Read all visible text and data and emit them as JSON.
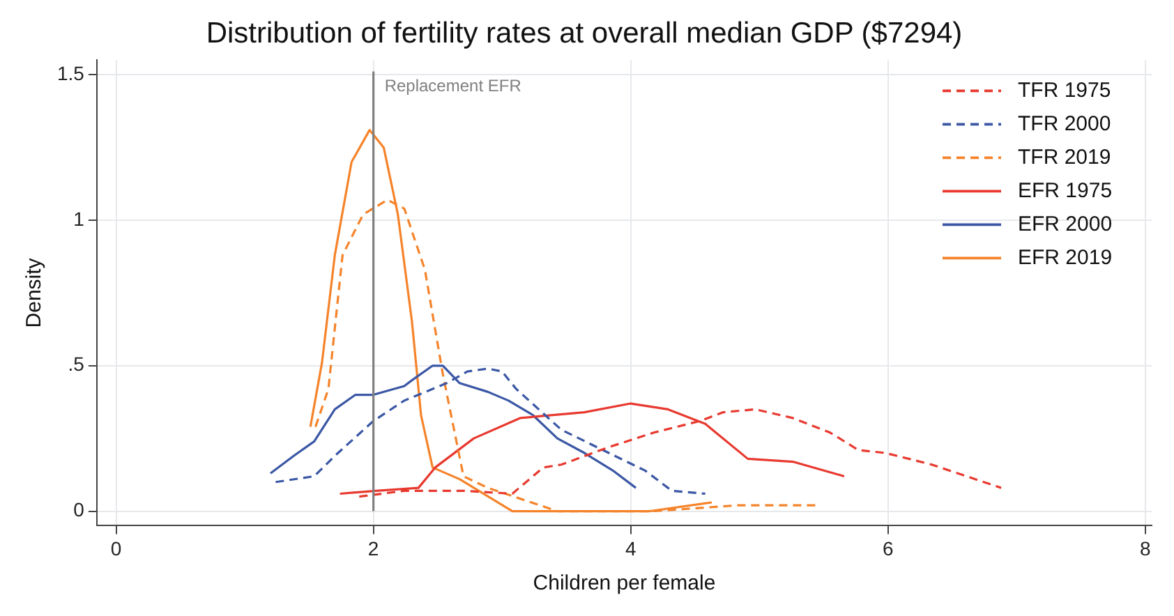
{
  "chart_data": {
    "type": "line",
    "title": "Distribution of fertility rates at overall median GDP ($7294)",
    "xlabel": "Children per female",
    "ylabel": "Density",
    "xlim": [
      -0.15,
      8.05
    ],
    "ylim": [
      -0.05,
      1.55
    ],
    "xticks": [
      0,
      2,
      4,
      6,
      8
    ],
    "yticks": [
      0,
      {
        "value": 0.5,
        "label": ".5"
      },
      1,
      1.5
    ],
    "grid": true,
    "legend": "top right",
    "marker": "none",
    "ref_lines": [
      {
        "axis": "x",
        "value": 2,
        "label": "Replacement EFR",
        "color": "#808080",
        "line_style": "solid"
      }
    ],
    "series": [
      {
        "name": "TFR 1975",
        "color": "#e8392f",
        "line_style": "dashed",
        "x": [
          1.89,
          2.24,
          2.7,
          3.08,
          3.32,
          3.46,
          3.83,
          4.18,
          4.54,
          4.72,
          4.97,
          5.26,
          5.55,
          5.77,
          5.98,
          6.34,
          6.88
        ],
        "values": [
          0.05,
          0.07,
          0.07,
          0.06,
          0.15,
          0.16,
          0.22,
          0.27,
          0.31,
          0.34,
          0.35,
          0.32,
          0.27,
          0.21,
          0.2,
          0.16,
          0.08
        ]
      },
      {
        "name": "TFR 2000",
        "color": "#3b57a5",
        "line_style": "dashed",
        "x": [
          1.24,
          1.54,
          1.7,
          2.0,
          2.24,
          2.57,
          2.73,
          2.89,
          3.0,
          3.11,
          3.46,
          3.83,
          4.11,
          4.32,
          4.58
        ],
        "values": [
          0.1,
          0.12,
          0.19,
          0.31,
          0.38,
          0.44,
          0.48,
          0.49,
          0.48,
          0.42,
          0.28,
          0.2,
          0.14,
          0.07,
          0.06
        ]
      },
      {
        "name": "TFR 2019",
        "color": "#f5832a",
        "line_style": "dashed",
        "x": [
          1.55,
          1.65,
          1.76,
          1.92,
          2.11,
          2.24,
          2.4,
          2.54,
          2.7,
          2.89,
          3.43,
          4.18,
          4.83,
          5.44
        ],
        "values": [
          0.29,
          0.42,
          0.88,
          1.02,
          1.07,
          1.04,
          0.83,
          0.47,
          0.12,
          0.08,
          0,
          0,
          0.02,
          0.02
        ]
      },
      {
        "name": "EFR 1975",
        "color": "#e8392f",
        "line_style": "solid",
        "x": [
          1.74,
          2.02,
          2.35,
          2.48,
          2.78,
          3.14,
          3.64,
          4.0,
          4.29,
          4.58,
          4.91,
          5.26,
          5.66
        ],
        "values": [
          0.06,
          0.07,
          0.08,
          0.15,
          0.25,
          0.32,
          0.34,
          0.37,
          0.35,
          0.3,
          0.18,
          0.17,
          0.12
        ]
      },
      {
        "name": "EFR 2000",
        "color": "#3b57a5",
        "line_style": "solid",
        "x": [
          1.2,
          1.38,
          1.54,
          1.7,
          1.86,
          2.0,
          2.24,
          2.3,
          2.46,
          2.54,
          2.67,
          2.89,
          3.05,
          3.24,
          3.43,
          3.64,
          3.86,
          4.04
        ],
        "values": [
          0.13,
          0.19,
          0.24,
          0.35,
          0.4,
          0.4,
          0.43,
          0.45,
          0.5,
          0.5,
          0.44,
          0.41,
          0.38,
          0.33,
          0.25,
          0.2,
          0.14,
          0.08
        ]
      },
      {
        "name": "EFR 2019",
        "color": "#f5832a",
        "line_style": "solid",
        "x": [
          1.51,
          1.6,
          1.7,
          1.83,
          1.97,
          2.08,
          2.19,
          2.3,
          2.37,
          2.46,
          2.67,
          3.08,
          4.15,
          4.63
        ],
        "values": [
          0.29,
          0.51,
          0.88,
          1.2,
          1.31,
          1.25,
          1.02,
          0.65,
          0.33,
          0.15,
          0.11,
          0,
          0,
          0.03
        ]
      }
    ]
  }
}
